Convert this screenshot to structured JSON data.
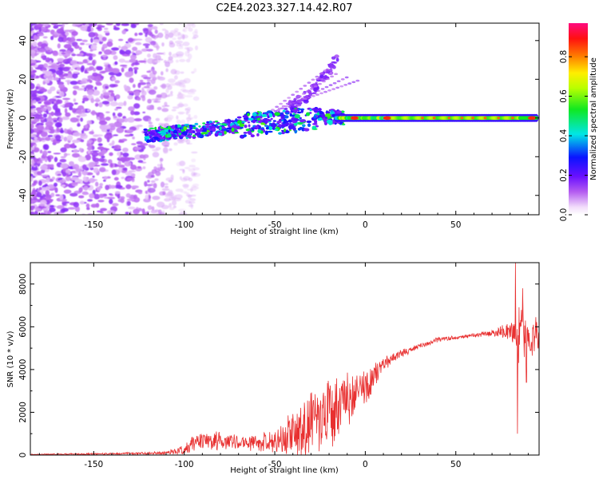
{
  "chart_data": [
    {
      "type": "heatmap",
      "title": "C2E4.2023.327.14.42.R07",
      "xlabel": "Height of straight line (km)",
      "ylabel": "Frequency (Hz)",
      "xlim": [
        -185,
        96
      ],
      "ylim": [
        -50,
        49
      ],
      "xticks": [
        -150,
        -100,
        -50,
        0,
        50
      ],
      "yticks": [
        -40,
        -20,
        0,
        20,
        40
      ],
      "colorbar": {
        "label": "Normalized spectral amplitude",
        "range": [
          0.0,
          0.97
        ],
        "ticks": [
          0.0,
          0.2,
          0.4,
          0.6,
          0.8
        ],
        "colormap": "rainbow (white-violet-blue-cyan-green-yellow-orange-red-magenta)"
      },
      "features": [
        {
          "name": "main trace",
          "x_range": [
            -122,
            95
          ],
          "freq_start": -9,
          "freq_end": 0,
          "peak_amplitude_near_x": [
            -6,
            12,
            92
          ]
        },
        {
          "name": "upper branch",
          "x_range": [
            -45,
            -15
          ],
          "freq_start": 5,
          "freq_end": 32
        },
        {
          "name": "noise region",
          "x_range": [
            -185,
            -105
          ],
          "freq_range": [
            -50,
            49
          ],
          "amplitude_range": [
            0.0,
            0.15
          ]
        }
      ]
    },
    {
      "type": "line",
      "xlabel": "Height of straight line (km)",
      "ylabel": "SNR (10 * v/v)",
      "xlim": [
        -185,
        96
      ],
      "ylim": [
        0,
        9000
      ],
      "xticks": [
        -150,
        -100,
        -50,
        0,
        50
      ],
      "yticks": [
        0,
        2000,
        4000,
        6000,
        8000
      ],
      "color": "#e83030",
      "envelope": {
        "x": [
          -185,
          -140,
          -110,
          -100,
          -95,
          -85,
          -70,
          -60,
          -50,
          -40,
          -30,
          -25,
          -20,
          -15,
          -10,
          -5,
          0,
          5,
          10,
          15,
          20,
          30,
          40,
          50,
          60,
          70,
          80,
          85,
          90,
          96
        ],
        "mean": [
          30,
          60,
          100,
          250,
          550,
          700,
          600,
          550,
          700,
          1000,
          1400,
          1700,
          2000,
          2300,
          2600,
          2900,
          3200,
          3700,
          4200,
          4500,
          4750,
          5100,
          5400,
          5500,
          5600,
          5700,
          5800,
          5600,
          5400,
          5600
        ],
        "amp": [
          30,
          50,
          90,
          250,
          450,
          500,
          350,
          450,
          700,
          1200,
          1800,
          2200,
          2000,
          1700,
          1500,
          1200,
          900,
          700,
          450,
          300,
          200,
          150,
          150,
          100,
          100,
          180,
          500,
          1600,
          1400,
          800
        ]
      },
      "spikes": [
        {
          "x": 83,
          "y": 9000
        },
        {
          "x": 84,
          "y": 1000
        },
        {
          "x": 87,
          "y": 7800
        },
        {
          "x": 89,
          "y": 3400
        }
      ]
    }
  ]
}
